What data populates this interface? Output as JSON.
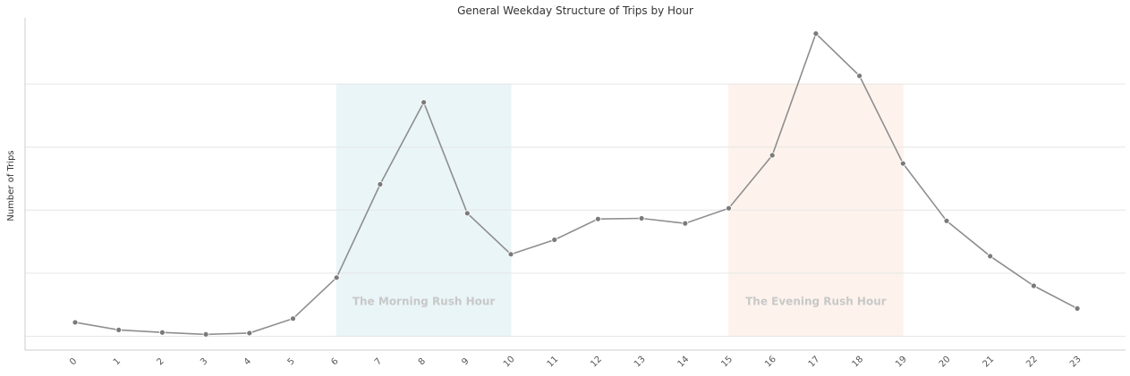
{
  "chart_data": {
    "type": "line",
    "title": "General Weekday Structure of Trips by Hour",
    "xlabel": "",
    "ylabel": "Number of Trips",
    "categories": [
      "0",
      "1",
      "2",
      "3",
      "4",
      "5",
      "6",
      "7",
      "8",
      "9",
      "10",
      "11",
      "12",
      "13",
      "14",
      "15",
      "16",
      "17",
      "18",
      "19",
      "20",
      "21",
      "22",
      "23"
    ],
    "values": [
      0.22,
      0.1,
      0.06,
      0.03,
      0.05,
      0.28,
      0.93,
      2.41,
      3.71,
      1.95,
      1.3,
      1.53,
      1.86,
      1.87,
      1.79,
      2.03,
      2.87,
      4.8,
      4.13,
      2.74,
      1.83,
      1.27,
      0.8,
      0.44
    ],
    "ylim": [
      -0.22,
      5.05
    ],
    "ytick_values": [
      0,
      1,
      2,
      3,
      4
    ],
    "grid": "y",
    "line_color": "#8e8e8e",
    "shaded_regions": [
      {
        "label": "The Morning Rush Hour",
        "x_start": 6,
        "x_end": 10,
        "y_start": 0,
        "y_end": 4,
        "color": "#eaf5f8"
      },
      {
        "label": "The Evening Rush Hour",
        "x_start": 15,
        "x_end": 19,
        "y_start": 0,
        "y_end": 4,
        "color": "#fdf3ec"
      }
    ]
  }
}
